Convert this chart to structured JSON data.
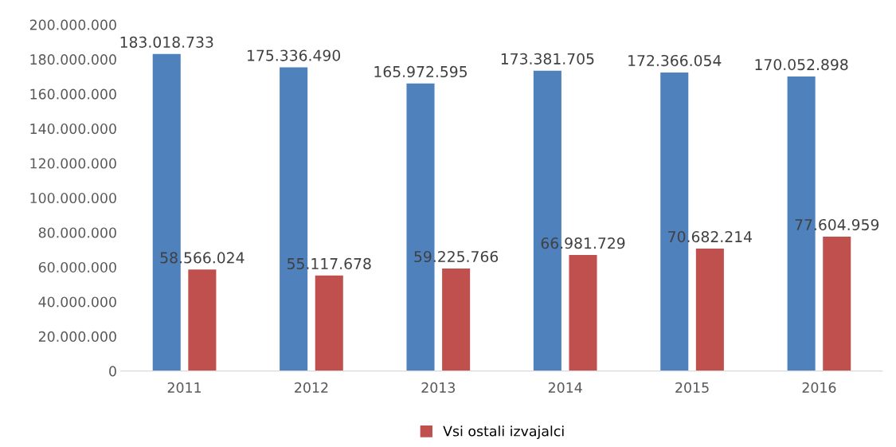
{
  "chart_data": {
    "type": "bar",
    "categories": [
      "2011",
      "2012",
      "2013",
      "2014",
      "2015",
      "2016"
    ],
    "series": [
      {
        "color": "#4f81bd",
        "values": [
          183018733,
          175336490,
          165972595,
          173381705,
          172366054,
          170052898
        ],
        "value_labels": [
          "183.018.733",
          "175.336.490",
          "165.972.595",
          "173.381.705",
          "172.366.054",
          "170.052.898"
        ]
      },
      {
        "name": "Vsi ostali izvajalci",
        "color": "#c0504d",
        "values": [
          58566024,
          55117678,
          59225766,
          66981729,
          70682214,
          77604959
        ],
        "value_labels": [
          "58.566.024",
          "55.117.678",
          "59.225.766",
          "66.981.729",
          "70.682.214",
          "77.604.959"
        ]
      }
    ],
    "ylim": [
      0,
      200000000
    ],
    "yticks": [
      0,
      {
        "value": 20000000,
        "label": "20.000.000"
      },
      {
        "value": 40000000,
        "label": "40.000.000"
      },
      {
        "value": 60000000,
        "label": "60.000.000"
      },
      {
        "value": 80000000,
        "label": "80.000.000"
      },
      {
        "value": 100000000,
        "label": "100.000.000"
      },
      {
        "value": 120000000,
        "label": "120.000.000"
      },
      {
        "value": 140000000,
        "label": "140.000.000"
      },
      {
        "value": 160000000,
        "label": "160.000.000"
      },
      {
        "value": 180000000,
        "label": "180.000.000"
      },
      {
        "value": 200000000,
        "label": "200.000.000"
      }
    ],
    "grid": false,
    "legend": "bottom"
  }
}
